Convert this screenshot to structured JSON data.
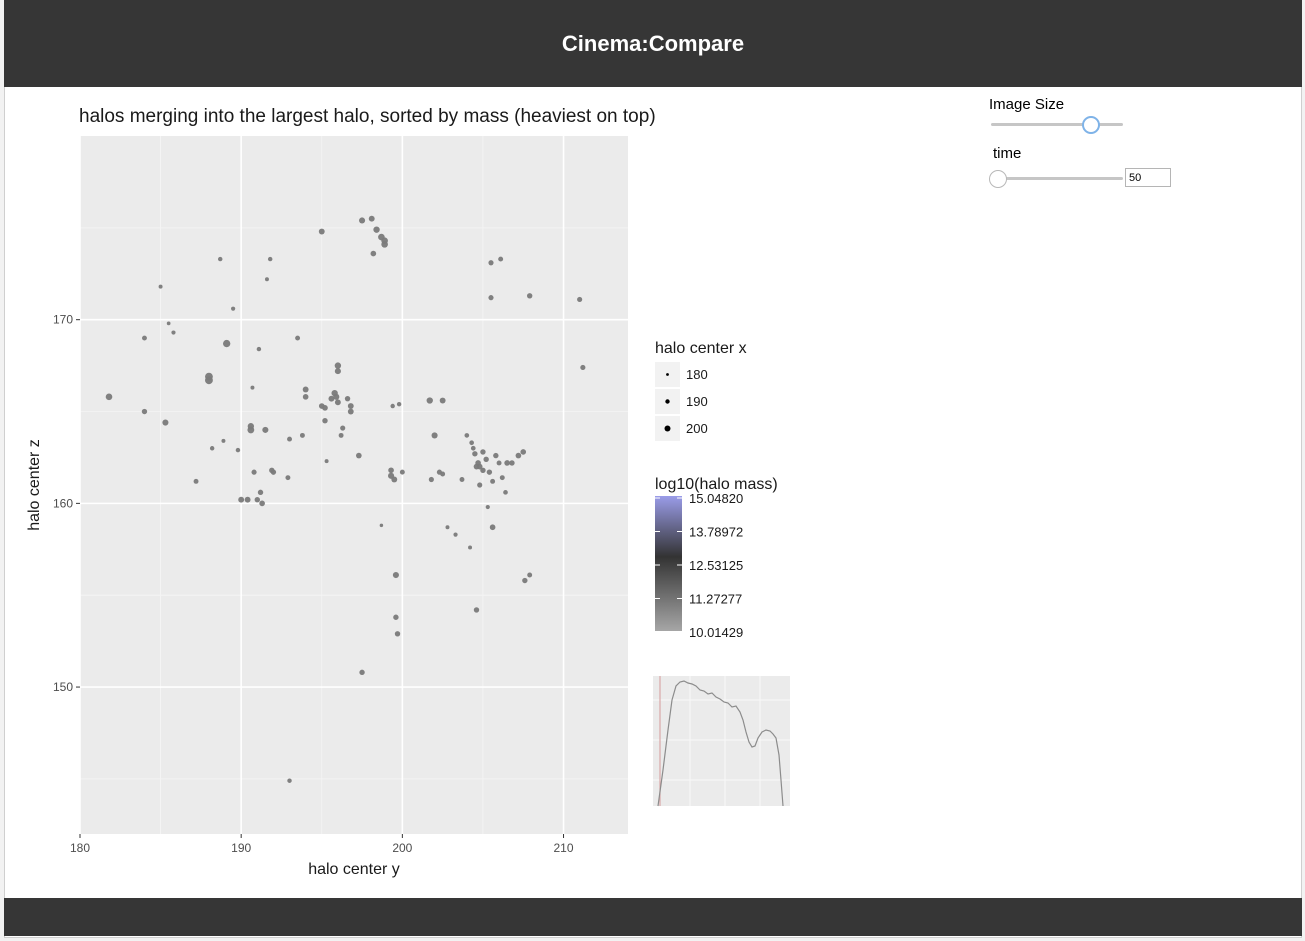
{
  "app": {
    "title": "Cinema:Compare"
  },
  "controls": {
    "image_size": {
      "label": "Image Size",
      "value_fraction": 0.76
    },
    "time": {
      "label": "time",
      "value": "50",
      "value_fraction": 0.02
    }
  },
  "chart_data": {
    "type": "scatter",
    "title": "halos merging into the largest halo, sorted by mass (heaviest on top)",
    "xlabel": "halo center y",
    "ylabel": "halo center z",
    "xlim": [
      180,
      214
    ],
    "ylim": [
      142,
      180
    ],
    "xticks": [
      "180",
      "190",
      "200",
      "210"
    ],
    "yticks": [
      "150",
      "160",
      "170"
    ],
    "grid": true,
    "size_legend": {
      "title": "halo center x",
      "entries": [
        "180",
        "190",
        "200"
      ]
    },
    "color_legend": {
      "title": "log10(halo mass)",
      "labels": [
        "15.04820",
        "13.78972",
        "12.53125",
        "11.27277",
        "10.01429"
      ],
      "low_color": "#a6a6a6",
      "mid_color": "#333333",
      "high_color": "#9a9ce8"
    },
    "points": [
      [
        181.8,
        165.8,
        195
      ],
      [
        184,
        165,
        190
      ],
      [
        185.3,
        164.4,
        193
      ],
      [
        184,
        169,
        188
      ],
      [
        185,
        171.8,
        184
      ],
      [
        185.5,
        169.8,
        183
      ],
      [
        185.8,
        169.3,
        185
      ],
      [
        187.2,
        161.2,
        188
      ],
      [
        188,
        166.9,
        200
      ],
      [
        188,
        166.7,
        200
      ],
      [
        188.2,
        163,
        186
      ],
      [
        188.7,
        173.3,
        186
      ],
      [
        188.9,
        163.4,
        184
      ],
      [
        189.1,
        168.7,
        198
      ],
      [
        189.5,
        170.6,
        185
      ],
      [
        189.8,
        162.9,
        186
      ],
      [
        190,
        160.2,
        192
      ],
      [
        190.4,
        160.2,
        192
      ],
      [
        190.6,
        164,
        196
      ],
      [
        190.6,
        164.2,
        194
      ],
      [
        190.7,
        166.3,
        184
      ],
      [
        190.8,
        161.7,
        189
      ],
      [
        191,
        160.2,
        190
      ],
      [
        191.2,
        160.6,
        190
      ],
      [
        191.3,
        160,
        191
      ],
      [
        191.1,
        168.4,
        186
      ],
      [
        191.5,
        164,
        193
      ],
      [
        191.6,
        172.2,
        184
      ],
      [
        191.8,
        173.3,
        186
      ],
      [
        191.9,
        161.8,
        190
      ],
      [
        192,
        161.7,
        190
      ],
      [
        192.9,
        161.4,
        188
      ],
      [
        193,
        163.5,
        188
      ],
      [
        193,
        144.9,
        186
      ],
      [
        193.5,
        169,
        188
      ],
      [
        193.8,
        163.7,
        188
      ],
      [
        194,
        165.8,
        191
      ],
      [
        194,
        166.2,
        192
      ],
      [
        195,
        174.8,
        192
      ],
      [
        195,
        165.3,
        191
      ],
      [
        195.2,
        165.2,
        191
      ],
      [
        195.2,
        164.5,
        190
      ],
      [
        195.3,
        162.3,
        184
      ],
      [
        195.6,
        165.7,
        192
      ],
      [
        195.8,
        166,
        194
      ],
      [
        195.9,
        165.8,
        193
      ],
      [
        196,
        167.5,
        194
      ],
      [
        196,
        167.2,
        193
      ],
      [
        196,
        165.5,
        192
      ],
      [
        196.2,
        163.7,
        188
      ],
      [
        196.3,
        164.1,
        189
      ],
      [
        196.6,
        165.7,
        190
      ],
      [
        196.8,
        165.3,
        192
      ],
      [
        196.8,
        165,
        192
      ],
      [
        197.3,
        162.6,
        191
      ],
      [
        197.5,
        150.8,
        190
      ],
      [
        197.5,
        175.4,
        193
      ],
      [
        198.1,
        175.5,
        192
      ],
      [
        198.2,
        173.6,
        191
      ],
      [
        198.4,
        174.9,
        194
      ],
      [
        198.7,
        174.5,
        195
      ],
      [
        198.9,
        174.3,
        195
      ],
      [
        198.9,
        174.1,
        195
      ],
      [
        198.7,
        158.8,
        182
      ],
      [
        199.3,
        161.5,
        193
      ],
      [
        199.3,
        161.8,
        191
      ],
      [
        199.5,
        161.3,
        192
      ],
      [
        199.4,
        165.3,
        186
      ],
      [
        199.6,
        156.1,
        193
      ],
      [
        199.6,
        153.8,
        190
      ],
      [
        199.7,
        152.9,
        190
      ],
      [
        199.8,
        165.4,
        186
      ],
      [
        200,
        161.7,
        188
      ],
      [
        201.7,
        165.6,
        194
      ],
      [
        201.8,
        161.3,
        189
      ],
      [
        202,
        163.7,
        193
      ],
      [
        202.3,
        161.7,
        189
      ],
      [
        202.5,
        165.6,
        192
      ],
      [
        202.5,
        161.6,
        188
      ],
      [
        202.8,
        158.7,
        184
      ],
      [
        203.3,
        158.3,
        185
      ],
      [
        203.7,
        161.3,
        188
      ],
      [
        204,
        163.7,
        187
      ],
      [
        204.2,
        157.6,
        184
      ],
      [
        204.3,
        163.3,
        187
      ],
      [
        204.4,
        163,
        187
      ],
      [
        204.5,
        162.7,
        190
      ],
      [
        204.6,
        162,
        191
      ],
      [
        204.6,
        154.2,
        190
      ],
      [
        204.7,
        162.2,
        191
      ],
      [
        204.8,
        162,
        191
      ],
      [
        204.8,
        161,
        189
      ],
      [
        205,
        161.8,
        190
      ],
      [
        205,
        162.8,
        190
      ],
      [
        205.2,
        162.4,
        190
      ],
      [
        205.3,
        159.8,
        185
      ],
      [
        205.4,
        161.7,
        190
      ],
      [
        205.5,
        171.2,
        189
      ],
      [
        205.5,
        173.1,
        189
      ],
      [
        205.6,
        161.2,
        188
      ],
      [
        205.6,
        158.7,
        191
      ],
      [
        205.8,
        162.6,
        190
      ],
      [
        206,
        162.2,
        188
      ],
      [
        206.1,
        173.3,
        188
      ],
      [
        206.2,
        161.4,
        188
      ],
      [
        206.4,
        160.6,
        187
      ],
      [
        206.5,
        162.2,
        191
      ],
      [
        206.8,
        162.2,
        190
      ],
      [
        207.2,
        162.6,
        191
      ],
      [
        207.5,
        162.8,
        191
      ],
      [
        207.6,
        155.8,
        190
      ],
      [
        207.9,
        171.3,
        190
      ],
      [
        207.9,
        156.1,
        188
      ],
      [
        211,
        171.1,
        189
      ],
      [
        211.2,
        167.4,
        189
      ]
    ]
  }
}
